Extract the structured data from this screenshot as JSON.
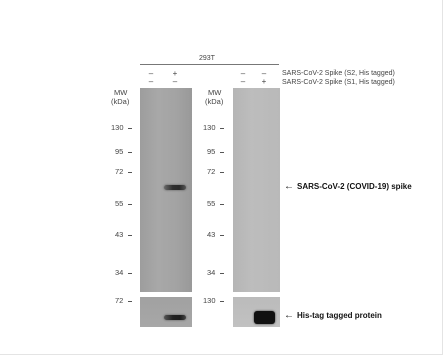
{
  "cell_line": "293T",
  "conditions": {
    "s2_label": "SARS-CoV-2 Spike (S2, His tagged)",
    "s1_label": "SARS-CoV-2 Spike (S1, His tagged)",
    "left_panel": {
      "s2_signs": [
        "–",
        "+"
      ],
      "s1_signs": [
        "–",
        "–"
      ]
    },
    "right_panel": {
      "s2_signs": [
        "–",
        "–"
      ],
      "s1_signs": [
        "–",
        "+"
      ]
    }
  },
  "mw_header": {
    "line1": "MW",
    "line2": "(kDa)"
  },
  "left_markers": [
    "130",
    "95",
    "72",
    "55",
    "43",
    "34"
  ],
  "right_markers": [
    "130",
    "95",
    "72",
    "55",
    "43",
    "34"
  ],
  "left_bottom_marker": "72",
  "right_bottom_marker": "130",
  "annotations": {
    "spike_arrow": "←",
    "spike_label": "SARS-CoV-2 (COVID-19) spike",
    "his_arrow": "←",
    "his_label": "His-tag tagged protein"
  },
  "colors": {
    "left_blot": "#a3a3a3",
    "right_blot": "#bbbbbb",
    "band": "#222222"
  }
}
